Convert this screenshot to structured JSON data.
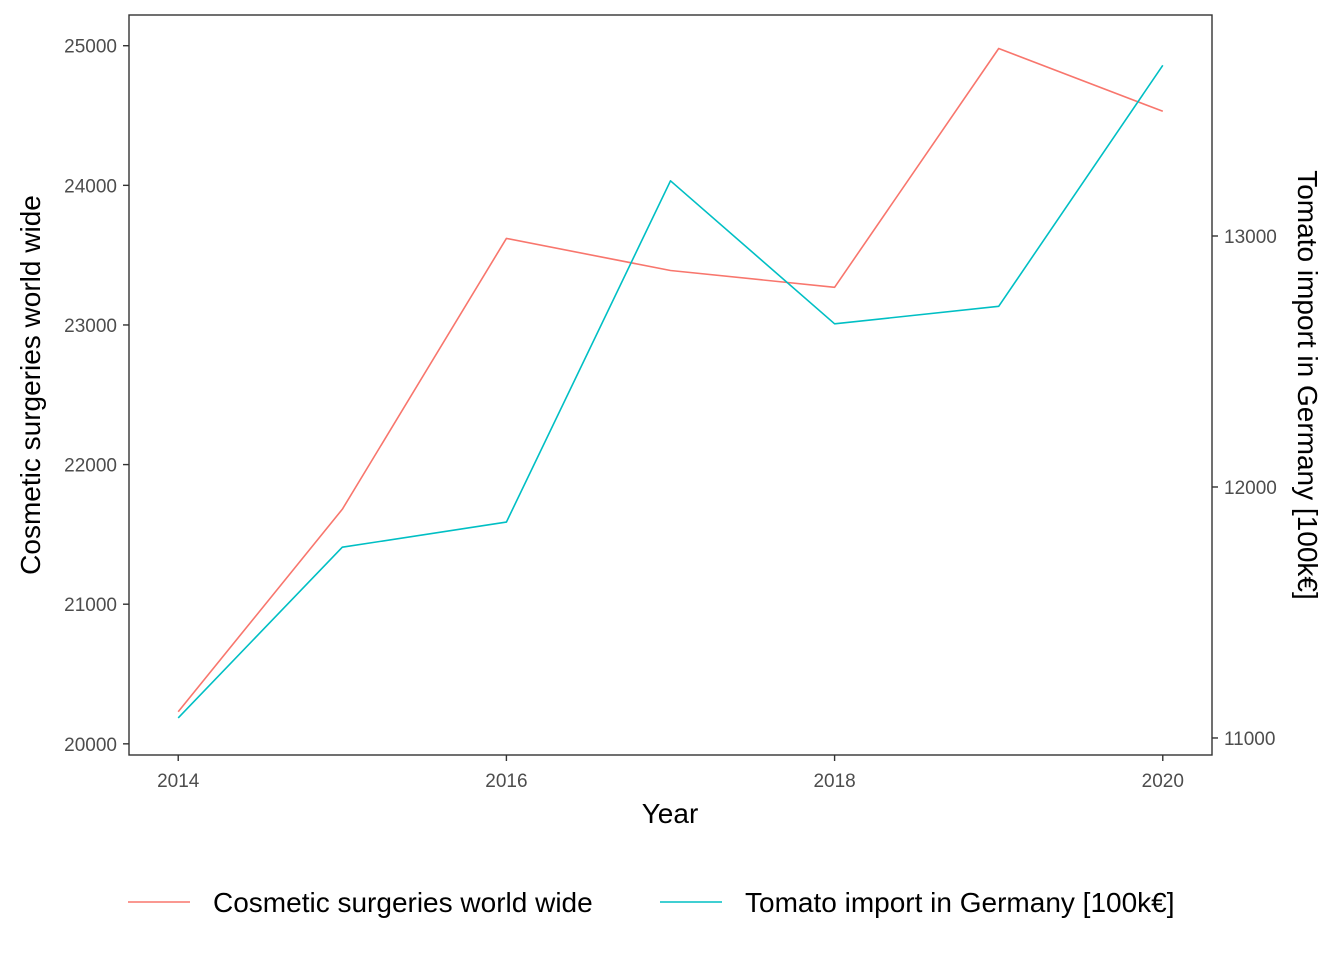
{
  "chart_data": {
    "type": "line",
    "x": [
      2014,
      2015,
      2016,
      2017,
      2018,
      2019,
      2020
    ],
    "xlabel": "Year",
    "xticks": [
      2014,
      2016,
      2018,
      2020
    ],
    "xlim": [
      2013.7,
      2020.3
    ],
    "ylabel": "Cosmetic surgeries world wide",
    "ylim": [
      19920,
      25220
    ],
    "yticks": [
      20000,
      21000,
      22000,
      23000,
      24000,
      25000
    ],
    "y2label": "Tomato import in Germany [100k€]",
    "y2lim": [
      10980,
      13000
    ],
    "y2ticks": [
      11000,
      12000,
      13000
    ],
    "grid": false,
    "legend_position": "bottom",
    "series": [
      {
        "name": "Cosmetic surgeries world wide",
        "axis": "left",
        "color": "#F8766D",
        "values": [
          20230,
          21680,
          23620,
          23390,
          23270,
          24980,
          24530
        ]
      },
      {
        "name": "Tomato import in Germany [100k€]",
        "axis": "right",
        "color": "#00BFC4",
        "values": [
          11080,
          11760,
          11860,
          13220,
          12650,
          12720,
          13680
        ]
      }
    ]
  }
}
